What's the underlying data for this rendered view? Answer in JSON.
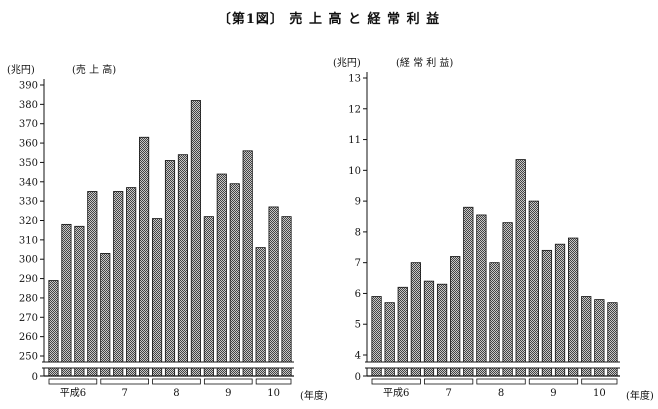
{
  "figure_title": "〔第1図〕 売 上 高 と 経 常 利 益",
  "colors": {
    "bar_fill": "#9a9a9a",
    "bar_stroke": "#111111",
    "axis": "#111111",
    "background": "#ffffff"
  },
  "chart_data": [
    {
      "type": "bar",
      "title": "(売 上 高)",
      "unit": "(兆円)",
      "xlabel": "(年度)",
      "groups": [
        "平成6",
        "7",
        "8",
        "9",
        "10"
      ],
      "bars_per_group": 4,
      "values": [
        289,
        318,
        317,
        335,
        303,
        335,
        337,
        363,
        321,
        351,
        354,
        382,
        322,
        344,
        339,
        356,
        306,
        327,
        322
      ],
      "ylim": [
        250,
        390
      ],
      "yticks": [
        250,
        260,
        270,
        280,
        290,
        300,
        310,
        320,
        330,
        340,
        350,
        360,
        370,
        380,
        390
      ],
      "axis_zero_label": "0",
      "axis_break": true,
      "grid": false,
      "legend": "none"
    },
    {
      "type": "bar",
      "title": "(経 常 利 益)",
      "unit": "(兆円)",
      "xlabel": "(年度)",
      "groups": [
        "平成6",
        "7",
        "8",
        "9",
        "10"
      ],
      "bars_per_group": 4,
      "values": [
        5.9,
        5.7,
        6.2,
        7.0,
        6.4,
        6.3,
        7.2,
        8.8,
        8.55,
        7.0,
        8.3,
        10.35,
        9.0,
        7.4,
        7.6,
        7.8,
        5.9,
        5.8,
        5.7
      ],
      "ylim": [
        4,
        13
      ],
      "yticks": [
        4,
        5,
        6,
        7,
        8,
        9,
        10,
        11,
        12,
        13
      ],
      "axis_zero_label": "0",
      "axis_break": true,
      "grid": false,
      "legend": "none"
    }
  ]
}
